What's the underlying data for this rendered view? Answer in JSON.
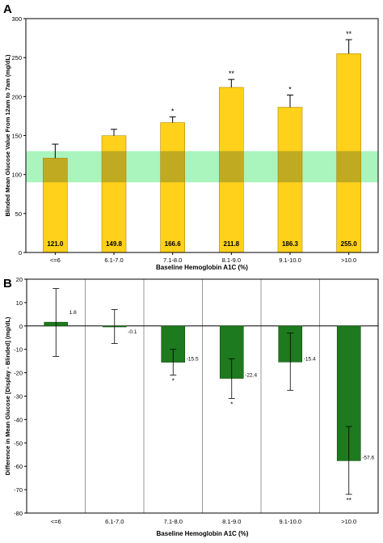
{
  "chart_data": [
    {
      "type": "bar",
      "panel_label": "A",
      "categories": [
        "<=6",
        "6.1-7.0",
        "7.1-8.0",
        "8.1-9.0",
        "9.1-10.0",
        ">10.0"
      ],
      "values": [
        121.0,
        149.8,
        166.6,
        211.8,
        186.3,
        255.0
      ],
      "value_labels": [
        "121.0",
        "149.8",
        "166.6",
        "211.8",
        "186.3",
        "255.0"
      ],
      "error_upper": [
        139,
        158,
        174,
        222,
        202,
        273
      ],
      "significance": [
        "",
        "",
        "*",
        "**",
        "*",
        "**"
      ],
      "target_band": [
        90,
        130
      ],
      "xlabel": "Baseline Hemoglobin A1C (%)",
      "ylabel": "Blinded Mean Glucose Value From 12am to 7am (mg/dL)",
      "ylim": [
        0,
        300
      ],
      "yticks": [
        0,
        50,
        100,
        150,
        200,
        250,
        300
      ],
      "bar_color": "#ffd11a",
      "bar_stroke": "#b08a00",
      "band_color": "#8ef0a8"
    },
    {
      "type": "bar",
      "panel_label": "B",
      "categories": [
        "<=6",
        "6.1-7.0",
        "7.1-8.0",
        "8.1-9.0",
        "9.1-10.0",
        ">10.0"
      ],
      "values": [
        1.6,
        -0.1,
        -15.5,
        -22.4,
        -15.4,
        -57.6
      ],
      "value_labels": [
        "1.6",
        "-0.1",
        "-15.5",
        "-22.4",
        "-15.4",
        "-57.6"
      ],
      "error_low": [
        -13,
        -7.5,
        -21,
        -31,
        -27.5,
        -72
      ],
      "error_high": [
        16,
        7,
        -10,
        -14,
        -3,
        -43
      ],
      "significance": [
        "",
        "",
        "*",
        "*",
        "",
        "**"
      ],
      "xlabel": "Baseline Hemoglobin A1C (%)",
      "ylabel": "Difference in Mean Glucose [Display - Blinded] (mg/dL)",
      "ylim": [
        -80,
        20
      ],
      "yticks": [
        20,
        10,
        0,
        -10,
        -20,
        -30,
        -40,
        -50,
        -60,
        -70,
        -80
      ],
      "bar_color": "#1e7a1e",
      "grid": "vertical separators between categories"
    }
  ]
}
